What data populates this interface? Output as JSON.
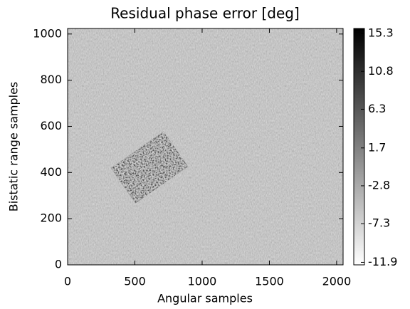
{
  "chart_data": {
    "type": "heatmap",
    "title": "Residual phase error [deg]",
    "x_label": "Angular samples",
    "y_label": "Bistatic range samples",
    "xlim": [
      0,
      2048
    ],
    "xticks": [
      0,
      500,
      1000,
      1500,
      2000
    ],
    "ylim": [
      0,
      1024
    ],
    "yticks": [
      0,
      200,
      400,
      600,
      800,
      1000
    ],
    "colorbar": {
      "lim": [
        -12.2,
        15.9
      ],
      "ticks": [
        15.3,
        10.8,
        6.3,
        1.7,
        -2.8,
        -7.3,
        -11.9
      ]
    }
  }
}
